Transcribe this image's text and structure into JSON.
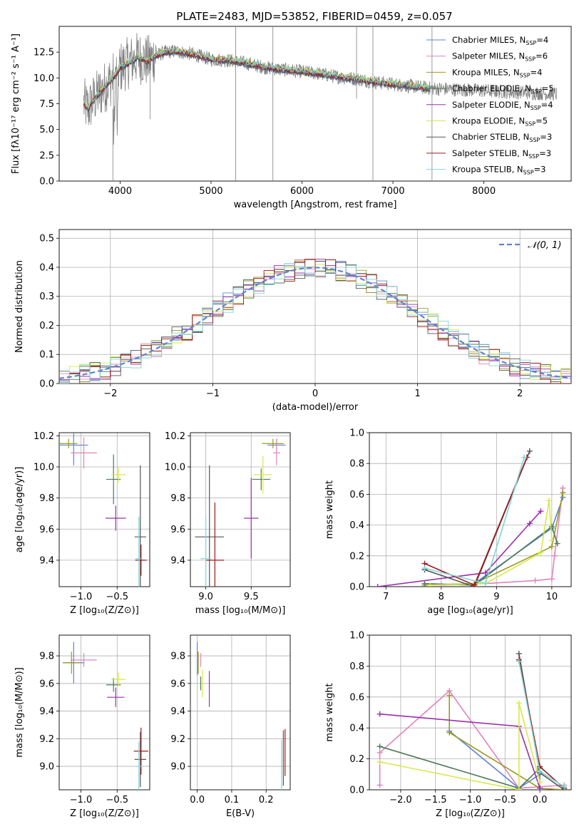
{
  "chart_data": [
    {
      "type": "line",
      "title": "PLATE=2483, MJD=53852, FIBERID=0459, z=0.057",
      "xlabel": "wavelength [Angstrom, rest frame]",
      "ylabel": "Flux [fλ10⁻¹⁷ erg cm⁻² s⁻¹ A⁻¹]",
      "xlim": [
        3330,
        8960
      ],
      "ylim": [
        0,
        15
      ],
      "xticks": [
        4000,
        5000,
        6000,
        7000,
        8000
      ],
      "yticks": [
        0,
        2.5,
        5,
        7.5,
        10,
        12.5
      ],
      "ytick_labels": [
        "0.0",
        "2.5",
        "5.0",
        "7.5",
        "10.0",
        "12.5"
      ],
      "legend_position": "top-right",
      "legend": [
        {
          "name": "Chabrier MILES, N",
          "sub": "SSP",
          "rest": "=4",
          "color": "#5b84d6"
        },
        {
          "name": "Salpeter MILES, N",
          "sub": "SSP",
          "rest": "=6",
          "color": "#e183bd"
        },
        {
          "name": "Kroupa MILES, N",
          "sub": "SSP",
          "rest": "=4",
          "color": "#9a9a1e"
        },
        {
          "name": "Chabrier ELODIE, N",
          "sub": "SSP",
          "rest": "=5",
          "color": "#4f7a5a"
        },
        {
          "name": "Salpeter ELODIE, N",
          "sub": "SSP",
          "rest": "=4",
          "color": "#9a2eae"
        },
        {
          "name": "Kroupa ELODIE, N",
          "sub": "SSP",
          "rest": "=5",
          "color": "#d8e84a"
        },
        {
          "name": "Chabrier STELIB, N",
          "sub": "SSP",
          "rest": "=3",
          "color": "#555555"
        },
        {
          "name": "Salpeter STELIB, N",
          "sub": "SSP",
          "rest": "=3",
          "color": "#a01818"
        },
        {
          "name": "Kroupa STELIB, N",
          "sub": "SSP",
          "rest": "=3",
          "color": "#7fd6d8"
        }
      ],
      "data_color": "#808080",
      "model_continuum": {
        "x": [
          3600,
          3650,
          3700,
          3750,
          3800,
          3850,
          3900,
          3950,
          4000,
          4100,
          4200,
          4300,
          4400,
          4500,
          4600,
          4800,
          5000,
          5200,
          5400,
          5600,
          5800,
          6000,
          6200,
          6400,
          6600,
          6800,
          7000,
          7200,
          7400
        ],
        "y": [
          7.5,
          7.0,
          7.8,
          8.3,
          8.8,
          9.3,
          9.8,
          10.3,
          11.0,
          11.5,
          12.0,
          11.6,
          12.2,
          12.5,
          12.6,
          12.3,
          11.8,
          11.7,
          11.4,
          11.0,
          10.8,
          10.6,
          10.4,
          10.1,
          9.9,
          9.6,
          9.4,
          9.2,
          9.0
        ]
      }
    },
    {
      "type": "histogram",
      "xlabel": "(data-model)/error",
      "ylabel": "Normed distribution",
      "xlim": [
        -2.5,
        2.5
      ],
      "ylim": [
        0,
        0.53
      ],
      "xticks": [
        -2,
        -1,
        0,
        1,
        2
      ],
      "xtick_labels": [
        "−2",
        "−1",
        "0",
        "1",
        "2"
      ],
      "yticks": [
        0,
        0.1,
        0.2,
        0.3,
        0.4,
        0.5
      ],
      "ytick_labels": [
        "0.0",
        "0.1",
        "0.2",
        "0.3",
        "0.4",
        "0.5"
      ],
      "legend": [
        {
          "name": "𝒩(0, 1)",
          "color": "#5b84d6",
          "style": "dashed"
        }
      ],
      "bin_width": 0.1,
      "reference_curve": "gaussian(0,1)"
    },
    {
      "type": "scatter",
      "xlabel": "Z [log₁₀(Z/Z⊙)]",
      "ylabel": "age [log₁₀(age/yr)]",
      "xlim": [
        -1.3,
        -0.05
      ],
      "ylim": [
        9.23,
        10.22
      ],
      "xticks": [
        -1.0,
        -0.5
      ],
      "xtick_labels": [
        "−1.0",
        "−0.5"
      ],
      "yticks": [
        9.4,
        9.6,
        9.8,
        10.0,
        10.2
      ],
      "ytick_labels": [
        "9.4",
        "9.6",
        "9.8",
        "10.0",
        "10.2"
      ],
      "points": [
        {
          "series": 0,
          "x": -1.1,
          "y": 10.14,
          "xerr": 0.2,
          "yerr": 0.13
        },
        {
          "series": 1,
          "x": -0.96,
          "y": 10.09,
          "xerr": 0.18,
          "yerr": 0.1
        },
        {
          "series": 2,
          "x": -1.17,
          "y": 10.15,
          "xerr": 0.12,
          "yerr": 0.03
        },
        {
          "series": 3,
          "x": -0.55,
          "y": 9.92,
          "xerr": 0.1,
          "yerr": 0.16
        },
        {
          "series": 4,
          "x": -0.52,
          "y": 9.67,
          "xerr": 0.14,
          "yerr": 0.08
        },
        {
          "series": 5,
          "x": -0.48,
          "y": 9.95,
          "xerr": 0.1,
          "yerr": 0.05
        },
        {
          "series": 6,
          "x": -0.18,
          "y": 9.55,
          "xerr": 0.08,
          "yerr": 0.46
        },
        {
          "series": 7,
          "x": -0.17,
          "y": 9.4,
          "xerr": 0.08,
          "yerr": 0.1
        },
        {
          "series": 8,
          "x": -0.2,
          "y": 9.41,
          "xerr": 0.05,
          "yerr": 0.27
        }
      ]
    },
    {
      "type": "scatter",
      "xlabel": "mass [log₁₀(M/M⊙)]",
      "ylabel": "",
      "xlim": [
        8.83,
        9.93
      ],
      "ylim": [
        9.23,
        10.22
      ],
      "xticks": [
        9.0,
        9.5
      ],
      "xtick_labels": [
        "9.0",
        "9.5"
      ],
      "yticks": [
        9.4,
        9.6,
        9.8,
        10.0,
        10.2
      ],
      "ytick_labels": [
        "9.4",
        "9.6",
        "9.8",
        "10.0",
        "10.2"
      ],
      "points": [
        {
          "series": 0,
          "x": 9.78,
          "y": 10.14,
          "xerr": 0.1,
          "yerr": 0.04
        },
        {
          "series": 1,
          "x": 9.78,
          "y": 10.09,
          "xerr": 0.04,
          "yerr": 0.08
        },
        {
          "series": 2,
          "x": 9.74,
          "y": 10.15,
          "xerr": 0.12,
          "yerr": 0.03
        },
        {
          "series": 3,
          "x": 9.61,
          "y": 9.92,
          "xerr": 0.1,
          "yerr": 0.07
        },
        {
          "series": 4,
          "x": 9.5,
          "y": 9.67,
          "xerr": 0.08,
          "yerr": 0.26
        },
        {
          "series": 5,
          "x": 9.63,
          "y": 9.95,
          "xerr": 0.1,
          "yerr": 0.12
        },
        {
          "series": 6,
          "x": 9.04,
          "y": 9.55,
          "xerr": 0.16,
          "yerr": 0.46
        },
        {
          "series": 7,
          "x": 9.1,
          "y": 9.4,
          "xerr": 0.1,
          "yerr": 0.37
        },
        {
          "series": 8,
          "x": 9.0,
          "y": 9.41,
          "xerr": 0.06,
          "yerr": 0.27
        }
      ]
    },
    {
      "type": "line",
      "xlabel": "age [log₁₀(age/yr)]",
      "ylabel": "mass weight",
      "xlim": [
        6.7,
        10.35
      ],
      "ylim": [
        0,
        1.0
      ],
      "xticks": [
        7,
        8,
        9,
        10
      ],
      "xtick_labels": [
        "7",
        "8",
        "9",
        "10"
      ],
      "yticks": [
        0,
        0.2,
        0.4,
        0.6,
        0.8,
        1.0
      ],
      "ytick_labels": [
        "0.0",
        "0.2",
        "0.4",
        "0.6",
        "0.8",
        "1.0"
      ],
      "series": [
        {
          "series": 0,
          "x": [
            7.7,
            8.6,
            10.0,
            10.2
          ],
          "y": [
            0.01,
            0.02,
            0.38,
            0.58
          ]
        },
        {
          "series": 1,
          "x": [
            8.0,
            8.8,
            9.7,
            10.0,
            10.05,
            10.2
          ],
          "y": [
            0.01,
            0.02,
            0.04,
            0.05,
            0.2,
            0.64
          ]
        },
        {
          "series": 2,
          "x": [
            7.7,
            8.6,
            10.0,
            10.2
          ],
          "y": [
            0.01,
            0.02,
            0.26,
            0.61
          ]
        },
        {
          "series": 3,
          "x": [
            7.7,
            8.6,
            10.0,
            10.1
          ],
          "y": [
            0.02,
            0.01,
            0.39,
            0.28
          ]
        },
        {
          "series": 4,
          "x": [
            6.85,
            8.8,
            9.6,
            9.8
          ],
          "y": [
            0.0,
            0.09,
            0.41,
            0.49
          ]
        },
        {
          "series": 5,
          "x": [
            7.8,
            8.8,
            9.8,
            9.95,
            10.0
          ],
          "y": [
            0.01,
            0.02,
            0.22,
            0.56,
            0.3
          ]
        },
        {
          "series": 6,
          "x": [
            7.7,
            8.6,
            9.6
          ],
          "y": [
            0.11,
            0.0,
            0.88
          ]
        },
        {
          "series": 7,
          "x": [
            7.7,
            8.6,
            9.55
          ],
          "y": [
            0.15,
            0.01,
            0.84
          ]
        },
        {
          "series": 8,
          "x": [
            7.7,
            8.8,
            9.5
          ],
          "y": [
            0.12,
            0.02,
            0.84
          ]
        }
      ]
    },
    {
      "type": "scatter",
      "xlabel": "Z [log₁₀(Z/Z⊙)]",
      "ylabel": "mass [log₁₀(M/M⊙)]",
      "xlim": [
        -1.3,
        -0.05
      ],
      "ylim": [
        8.83,
        9.95
      ],
      "xticks": [
        -1.0,
        -0.5
      ],
      "xtick_labels": [
        "−1.0",
        "−0.5"
      ],
      "yticks": [
        9.0,
        9.2,
        9.4,
        9.6,
        9.8
      ],
      "ytick_labels": [
        "9.0",
        "9.2",
        "9.4",
        "9.6",
        "9.8"
      ],
      "points": [
        {
          "series": 0,
          "x": -1.1,
          "y": 9.75,
          "xerr": 0.15,
          "yerr": 0.15
        },
        {
          "series": 1,
          "x": -0.96,
          "y": 9.77,
          "xerr": 0.18,
          "yerr": 0.05
        },
        {
          "series": 2,
          "x": -1.13,
          "y": 9.75,
          "xerr": 0.12,
          "yerr": 0.08
        },
        {
          "series": 3,
          "x": -0.55,
          "y": 9.59,
          "xerr": 0.1,
          "yerr": 0.05
        },
        {
          "series": 4,
          "x": -0.52,
          "y": 9.5,
          "xerr": 0.12,
          "yerr": 0.07
        },
        {
          "series": 5,
          "x": -0.48,
          "y": 9.63,
          "xerr": 0.1,
          "yerr": 0.05
        },
        {
          "series": 6,
          "x": -0.18,
          "y": 9.05,
          "xerr": 0.08,
          "yerr": 0.2
        },
        {
          "series": 7,
          "x": -0.17,
          "y": 9.11,
          "xerr": 0.1,
          "yerr": 0.17
        },
        {
          "series": 8,
          "x": -0.2,
          "y": 9.0,
          "xerr": 0.05,
          "yerr": 0.18
        }
      ]
    },
    {
      "type": "scatter",
      "xlabel": "E(B-V)",
      "ylabel": "",
      "xlim": [
        -0.02,
        0.27
      ],
      "ylim": [
        8.83,
        9.95
      ],
      "xticks": [
        0.0,
        0.1,
        0.2
      ],
      "xtick_labels": [
        "0.0",
        "0.1",
        "0.2"
      ],
      "yticks": [
        9.0,
        9.2,
        9.4,
        9.6,
        9.8
      ],
      "ytick_labels": [
        "9.0",
        "9.2",
        "9.4",
        "9.6",
        "9.8"
      ],
      "points": [
        {
          "series": 0,
          "x": 0.0,
          "y": 9.78,
          "xerr": 0,
          "yerr": 0.12
        },
        {
          "series": 1,
          "x": 0.01,
          "y": 9.77,
          "xerr": 0,
          "yerr": 0.05
        },
        {
          "series": 2,
          "x": 0.003,
          "y": 9.75,
          "xerr": 0,
          "yerr": 0.08
        },
        {
          "series": 3,
          "x": 0.01,
          "y": 9.6,
          "xerr": 0,
          "yerr": 0.05
        },
        {
          "series": 4,
          "x": 0.035,
          "y": 9.56,
          "xerr": 0,
          "yerr": 0.13
        },
        {
          "series": 5,
          "x": 0.015,
          "y": 9.6,
          "xerr": 0,
          "yerr": 0.1
        },
        {
          "series": 6,
          "x": 0.25,
          "y": 9.06,
          "xerr": 0,
          "yerr": 0.2
        },
        {
          "series": 7,
          "x": 0.255,
          "y": 9.1,
          "xerr": 0,
          "yerr": 0.17
        },
        {
          "series": 8,
          "x": 0.245,
          "y": 9.01,
          "xerr": 0,
          "yerr": 0.18
        }
      ]
    },
    {
      "type": "line",
      "xlabel": "Z [log₁₀(Z/Z⊙)]",
      "ylabel": "mass weight",
      "xlim": [
        -2.45,
        0.45
      ],
      "ylim": [
        0,
        1.0
      ],
      "xticks": [
        -2.0,
        -1.5,
        -1.0,
        -0.5,
        0.0
      ],
      "xtick_labels": [
        "−2.0",
        "−1.5",
        "−1.0",
        "−0.5",
        "0.0"
      ],
      "yticks": [
        0,
        0.2,
        0.4,
        0.6,
        0.8,
        1.0
      ],
      "ytick_labels": [
        "0.0",
        "0.2",
        "0.4",
        "0.6",
        "0.8",
        "1.0"
      ],
      "series": [
        {
          "series": 0,
          "x": [
            -1.3,
            -0.3,
            0.0,
            0.0
          ],
          "y": [
            0.38,
            0.01,
            0.1,
            0.0
          ]
        },
        {
          "series": 1,
          "x": [
            -2.3,
            -2.3,
            -1.3,
            -0.3,
            0.0,
            0.35
          ],
          "y": [
            0.03,
            0.24,
            0.64,
            0.01,
            0.02,
            0.03
          ]
        },
        {
          "series": 2,
          "x": [
            -1.3,
            -1.3,
            0.0,
            0.35
          ],
          "y": [
            0.61,
            0.37,
            0.01,
            0.0
          ]
        },
        {
          "series": 3,
          "x": [
            -2.3,
            -0.3,
            0.0
          ],
          "y": [
            0.28,
            0.01,
            0.14
          ]
        },
        {
          "series": 4,
          "x": [
            -2.3,
            -0.3,
            0.0
          ],
          "y": [
            0.49,
            0.41,
            0.01
          ]
        },
        {
          "series": 5,
          "x": [
            -2.3,
            -0.3,
            -0.3,
            0.0
          ],
          "y": [
            0.18,
            0.0,
            0.56,
            0.05
          ]
        },
        {
          "series": 6,
          "x": [
            -0.3,
            0.0,
            0.35
          ],
          "y": [
            0.88,
            0.11,
            0.0
          ]
        },
        {
          "series": 7,
          "x": [
            -0.3,
            0.0,
            0.35
          ],
          "y": [
            0.84,
            0.15,
            0.01
          ]
        },
        {
          "series": 8,
          "x": [
            -0.3,
            0.0,
            0.35
          ],
          "y": [
            0.83,
            0.12,
            0.02
          ]
        }
      ]
    }
  ]
}
